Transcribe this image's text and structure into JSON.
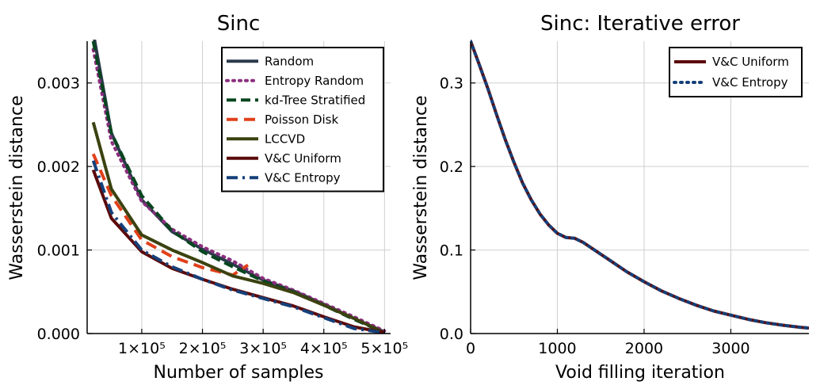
{
  "chart_data": [
    {
      "type": "line",
      "title": "Sinc",
      "xlabel": "Number of samples",
      "ylabel": "Wasserstein distance",
      "xlim": [
        10000,
        510000
      ],
      "ylim": [
        0,
        0.0035
      ],
      "xticks": [
        100000,
        200000,
        300000,
        400000,
        500000
      ],
      "xtick_labels": [
        "1×10⁵",
        "2×10⁵",
        "3×10⁵",
        "4×10⁵",
        "5×10⁵"
      ],
      "yticks": [
        0,
        0.001,
        0.002,
        0.003
      ],
      "ytick_labels": [
        "0.000",
        "0.001",
        "0.002",
        "0.003"
      ],
      "grid": true,
      "legend_position": "top-right",
      "series": [
        {
          "name": "Random",
          "color": "#2b3a4a",
          "dash": "solid",
          "x": [
            20000,
            50000,
            100000,
            150000,
            200000,
            250000,
            300000,
            350000,
            400000,
            450000,
            500000
          ],
          "y": [
            0.0036,
            0.0024,
            0.0016,
            0.00122,
            0.00101,
            0.00083,
            0.00064,
            0.00051,
            0.00035,
            0.00018,
            2e-05
          ]
        },
        {
          "name": "Entropy Random",
          "color": "#8b2e7f",
          "dash": "dot",
          "x": [
            20000,
            50000,
            100000,
            150000,
            200000,
            250000,
            300000,
            350000,
            400000,
            450000,
            500000
          ],
          "y": [
            0.0034,
            0.0023,
            0.00158,
            0.00125,
            0.00104,
            0.00087,
            0.00066,
            0.00052,
            0.00036,
            0.0002,
            3e-05
          ]
        },
        {
          "name": "kd-Tree Stratified",
          "color": "#07461f",
          "dash": "dash",
          "x": [
            20000,
            50000,
            100000,
            150000,
            200000,
            250000,
            300000,
            350000,
            400000,
            450000,
            500000
          ],
          "y": [
            0.0035,
            0.0024,
            0.00165,
            0.00123,
            0.00098,
            0.0008,
            0.00063,
            0.0005,
            0.00034,
            0.00017,
            1e-05
          ]
        },
        {
          "name": "Poisson Disk",
          "color": "#e0401a",
          "dash": "longdash",
          "x": [
            20000,
            50000,
            100000,
            150000,
            200000,
            250000,
            275000
          ],
          "y": [
            0.00215,
            0.00165,
            0.00112,
            0.00092,
            0.00079,
            0.0007,
            0.00082
          ]
        },
        {
          "name": "LCCVD",
          "color": "#3b4210",
          "dash": "solid",
          "x": [
            20000,
            50000,
            100000,
            150000,
            200000,
            250000,
            300000,
            350000,
            400000,
            450000,
            500000
          ],
          "y": [
            0.00253,
            0.00173,
            0.00118,
            0.001,
            0.00085,
            0.00069,
            0.0006,
            0.00049,
            0.00034,
            0.00018,
            1e-05
          ]
        },
        {
          "name": "V&C Uniform",
          "color": "#5c0a0a",
          "dash": "solid",
          "x": [
            20000,
            50000,
            100000,
            150000,
            200000,
            250000,
            300000,
            350000,
            400000,
            450000,
            500000
          ],
          "y": [
            0.00196,
            0.00138,
            0.00098,
            0.00078,
            0.00065,
            0.00053,
            0.00043,
            0.00033,
            0.0002,
            8e-05,
            1e-05
          ]
        },
        {
          "name": "V&C Entropy",
          "color": "#15407a",
          "dash": "dashdot",
          "x": [
            20000,
            50000,
            100000,
            150000,
            200000,
            250000,
            300000,
            350000,
            400000,
            450000,
            500000
          ],
          "y": [
            0.00207,
            0.00145,
            0.001,
            0.0008,
            0.00065,
            0.00052,
            0.00042,
            0.00032,
            0.00019,
            6e-05,
            1e-05
          ]
        }
      ]
    },
    {
      "type": "line",
      "title": "Sinc: Iterative error",
      "xlabel": "Void filling iteration",
      "ylabel": "Wasserstein distance",
      "xlim": [
        0,
        3900
      ],
      "ylim": [
        0,
        0.35
      ],
      "xticks": [
        0,
        1000,
        2000,
        3000
      ],
      "xtick_labels": [
        "0",
        "1000",
        "2000",
        "3000"
      ],
      "yticks": [
        0,
        0.1,
        0.2,
        0.3
      ],
      "ytick_labels": [
        "0.0",
        "0.1",
        "0.2",
        "0.3"
      ],
      "grid": true,
      "legend_position": "top-right",
      "series": [
        {
          "name": "V&C Uniform",
          "color": "#5c0a0a",
          "dash": "solid",
          "x": [
            0,
            100,
            200,
            300,
            400,
            500,
            600,
            700,
            800,
            900,
            1000,
            1100,
            1200,
            1300,
            1400,
            1500,
            1600,
            1800,
            2000,
            2200,
            2400,
            2600,
            2800,
            3000,
            3200,
            3400,
            3600,
            3800,
            3900
          ],
          "y": [
            0.35,
            0.322,
            0.293,
            0.262,
            0.232,
            0.205,
            0.18,
            0.16,
            0.143,
            0.13,
            0.12,
            0.115,
            0.114,
            0.109,
            0.102,
            0.095,
            0.088,
            0.074,
            0.062,
            0.051,
            0.042,
            0.034,
            0.027,
            0.022,
            0.017,
            0.013,
            0.01,
            0.0075,
            0.0065
          ]
        },
        {
          "name": "V&C Entropy",
          "color": "#15407a",
          "dash": "dot",
          "x": [
            0,
            100,
            200,
            300,
            400,
            500,
            600,
            700,
            800,
            900,
            1000,
            1100,
            1200,
            1300,
            1400,
            1500,
            1600,
            1800,
            2000,
            2200,
            2400,
            2600,
            2800,
            3000,
            3200,
            3400,
            3600,
            3800,
            3900
          ],
          "y": [
            0.35,
            0.322,
            0.293,
            0.262,
            0.232,
            0.205,
            0.18,
            0.16,
            0.143,
            0.13,
            0.12,
            0.115,
            0.114,
            0.109,
            0.102,
            0.095,
            0.088,
            0.074,
            0.062,
            0.051,
            0.042,
            0.034,
            0.027,
            0.022,
            0.017,
            0.013,
            0.01,
            0.0075,
            0.0065
          ]
        }
      ]
    }
  ]
}
